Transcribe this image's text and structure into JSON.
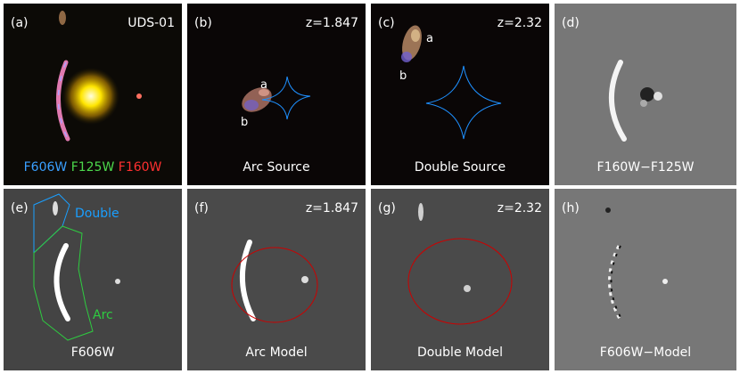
{
  "panels": [
    {
      "label": "(a)",
      "right_text": "UDS-01",
      "filters": [
        "F606W",
        "F125W",
        "F160W"
      ],
      "filter_colors": [
        "#3aa0ff",
        "#4cd94c",
        "#ff3030"
      ]
    },
    {
      "label": "(b)",
      "right_text": "z=1.847",
      "caption": "Arc Source",
      "marks": [
        "a",
        "b"
      ]
    },
    {
      "label": "(c)",
      "right_text": "z=2.32",
      "caption": "Double Source",
      "marks": [
        "a",
        "b"
      ]
    },
    {
      "label": "(d)",
      "caption": "F160W−F125W"
    },
    {
      "label": "(e)",
      "caption": "F606W",
      "regions": [
        "Double",
        "Arc"
      ],
      "region_colors": [
        "#1a9fff",
        "#2ecc40"
      ]
    },
    {
      "label": "(f)",
      "right_text": "z=1.847",
      "caption": "Arc Model"
    },
    {
      "label": "(g)",
      "right_text": "z=2.32",
      "caption": "Double Model"
    },
    {
      "label": "(h)",
      "caption": "F606W−Model"
    }
  ],
  "colors": {
    "caustic": "#1e90ff",
    "critical_curve": "#cc0000"
  }
}
